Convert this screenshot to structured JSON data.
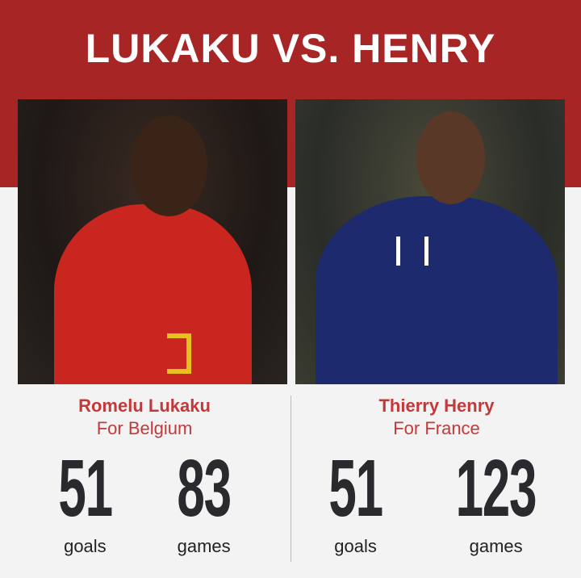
{
  "title": "LUKAKU VS. HENRY",
  "colors": {
    "banner": "#a82526",
    "accent": "#c3393a",
    "numbers": "#2a2a2e"
  },
  "players": [
    {
      "name": "Romelu Lukaku",
      "country": "For Belgium",
      "goals": "51",
      "goals_label": "goals",
      "games": "83",
      "games_label": "games",
      "photo": "lukaku-belgium-red-kit-photo"
    },
    {
      "name": "Thierry Henry",
      "country": "For France",
      "goals": "51",
      "goals_label": "goals",
      "games": "123",
      "games_label": "games",
      "photo": "henry-france-blue-kit-photo"
    }
  ]
}
